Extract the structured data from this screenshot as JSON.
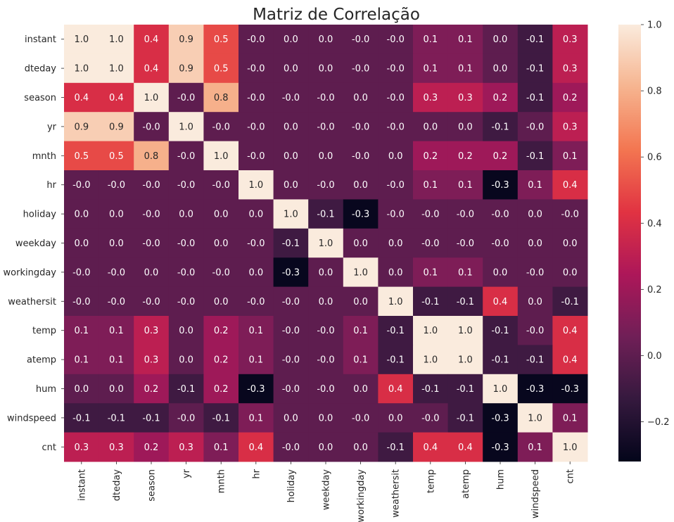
{
  "chart_data": {
    "type": "heatmap",
    "title": "Matriz de Correlação",
    "xlabel": "",
    "ylabel": "",
    "variables": [
      "instant",
      "dteday",
      "season",
      "yr",
      "mnth",
      "hr",
      "holiday",
      "weekday",
      "workingday",
      "weathersit",
      "temp",
      "atemp",
      "hum",
      "windspeed",
      "cnt"
    ],
    "matrix": [
      [
        1.0,
        1.0,
        0.4,
        0.9,
        0.5,
        -0.0,
        0.0,
        0.0,
        -0.0,
        -0.0,
        0.1,
        0.1,
        0.0,
        -0.1,
        0.3
      ],
      [
        1.0,
        1.0,
        0.4,
        0.9,
        0.5,
        -0.0,
        0.0,
        0.0,
        -0.0,
        -0.0,
        0.1,
        0.1,
        0.0,
        -0.1,
        0.3
      ],
      [
        0.4,
        0.4,
        1.0,
        -0.0,
        0.8,
        -0.0,
        -0.0,
        -0.0,
        0.0,
        -0.0,
        0.3,
        0.3,
        0.2,
        -0.1,
        0.2
      ],
      [
        0.9,
        0.9,
        -0.0,
        1.0,
        -0.0,
        -0.0,
        0.0,
        -0.0,
        -0.0,
        -0.0,
        0.0,
        0.0,
        -0.1,
        -0.0,
        0.3
      ],
      [
        0.5,
        0.5,
        0.8,
        -0.0,
        1.0,
        -0.0,
        0.0,
        0.0,
        -0.0,
        0.0,
        0.2,
        0.2,
        0.2,
        -0.1,
        0.1
      ],
      [
        -0.0,
        -0.0,
        -0.0,
        -0.0,
        -0.0,
        1.0,
        0.0,
        -0.0,
        0.0,
        -0.0,
        0.1,
        0.1,
        -0.3,
        0.1,
        0.4
      ],
      [
        0.0,
        0.0,
        -0.0,
        0.0,
        0.0,
        0.0,
        1.0,
        -0.1,
        -0.3,
        -0.0,
        -0.0,
        -0.0,
        -0.0,
        0.0,
        -0.0
      ],
      [
        0.0,
        0.0,
        -0.0,
        -0.0,
        0.0,
        -0.0,
        -0.1,
        1.0,
        0.0,
        0.0,
        -0.0,
        -0.0,
        -0.0,
        0.0,
        0.0
      ],
      [
        -0.0,
        -0.0,
        0.0,
        -0.0,
        -0.0,
        0.0,
        -0.3,
        0.0,
        1.0,
        0.0,
        0.1,
        0.1,
        0.0,
        -0.0,
        0.0
      ],
      [
        -0.0,
        -0.0,
        -0.0,
        -0.0,
        0.0,
        -0.0,
        -0.0,
        0.0,
        0.0,
        1.0,
        -0.1,
        -0.1,
        0.4,
        0.0,
        -0.1
      ],
      [
        0.1,
        0.1,
        0.3,
        0.0,
        0.2,
        0.1,
        -0.0,
        -0.0,
        0.1,
        -0.1,
        1.0,
        1.0,
        -0.1,
        -0.0,
        0.4
      ],
      [
        0.1,
        0.1,
        0.3,
        0.0,
        0.2,
        0.1,
        -0.0,
        -0.0,
        0.1,
        -0.1,
        1.0,
        1.0,
        -0.1,
        -0.1,
        0.4
      ],
      [
        0.0,
        0.0,
        0.2,
        -0.1,
        0.2,
        -0.3,
        -0.0,
        -0.0,
        0.0,
        0.4,
        -0.1,
        -0.1,
        1.0,
        -0.3,
        -0.3
      ],
      [
        -0.1,
        -0.1,
        -0.1,
        -0.0,
        -0.1,
        0.1,
        0.0,
        0.0,
        -0.0,
        0.0,
        -0.0,
        -0.1,
        -0.3,
        1.0,
        0.1
      ],
      [
        0.3,
        0.3,
        0.2,
        0.3,
        0.1,
        0.4,
        -0.0,
        0.0,
        0.0,
        -0.1,
        0.4,
        0.4,
        -0.3,
        0.1,
        1.0
      ]
    ],
    "value_range": [
      -0.32,
      1.0
    ],
    "colormap": "rocket",
    "colorbar_ticks": [
      -0.2,
      0.0,
      0.2,
      0.4,
      0.6,
      0.8,
      1.0
    ],
    "colorbar_tick_labels": [
      "−0.2",
      "0.0",
      "0.2",
      "0.4",
      "0.6",
      "0.8",
      "1.0"
    ],
    "annotation_format": "0.1f",
    "colors": {
      "rocket_stops": [
        "#03051a",
        "#35193e",
        "#701f57",
        "#ad1759",
        "#e13342",
        "#f37651",
        "#f6b48f",
        "#faebdd"
      ]
    }
  }
}
